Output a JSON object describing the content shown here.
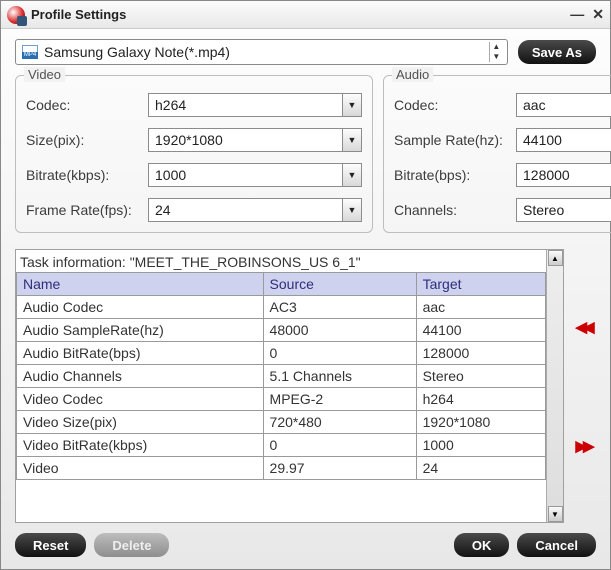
{
  "window": {
    "title": "Profile Settings"
  },
  "profile": {
    "name": "Samsung Galaxy Note(*.mp4)"
  },
  "buttons": {
    "save_as": "Save As",
    "reset": "Reset",
    "delete": "Delete",
    "ok": "OK",
    "cancel": "Cancel"
  },
  "video": {
    "legend": "Video",
    "codec_label": "Codec:",
    "codec": "h264",
    "size_label": "Size(pix):",
    "size": "1920*1080",
    "bitrate_label": "Bitrate(kbps):",
    "bitrate": "1000",
    "fps_label": "Frame Rate(fps):",
    "fps": "24"
  },
  "audio": {
    "legend": "Audio",
    "codec_label": "Codec:",
    "codec": "aac",
    "sr_label": "Sample Rate(hz):",
    "sr": "44100",
    "bitrate_label": "Bitrate(bps):",
    "bitrate": "128000",
    "channels_label": "Channels:",
    "channels": "Stereo"
  },
  "task": {
    "header": "Task information: \"MEET_THE_ROBINSONS_US 6_1\"",
    "columns": [
      "Name",
      "Source",
      "Target"
    ],
    "rows": [
      [
        "Audio Codec",
        "AC3",
        "aac"
      ],
      [
        "Audio SampleRate(hz)",
        "48000",
        "44100"
      ],
      [
        "Audio BitRate(bps)",
        "0",
        "128000"
      ],
      [
        "Audio Channels",
        "5.1 Channels",
        "Stereo"
      ],
      [
        "Video Codec",
        "MPEG-2",
        "h264"
      ],
      [
        "Video Size(pix)",
        "720*480",
        "1920*1080"
      ],
      [
        "Video BitRate(kbps)",
        "0",
        "1000"
      ],
      [
        "Video",
        "29.97",
        "24"
      ]
    ]
  },
  "colors": {
    "header_bg": "#cfd2ef",
    "border": "#9a9a9a",
    "window_bg_top": "#fefefe",
    "window_bg_bottom": "#e8e8e8"
  }
}
